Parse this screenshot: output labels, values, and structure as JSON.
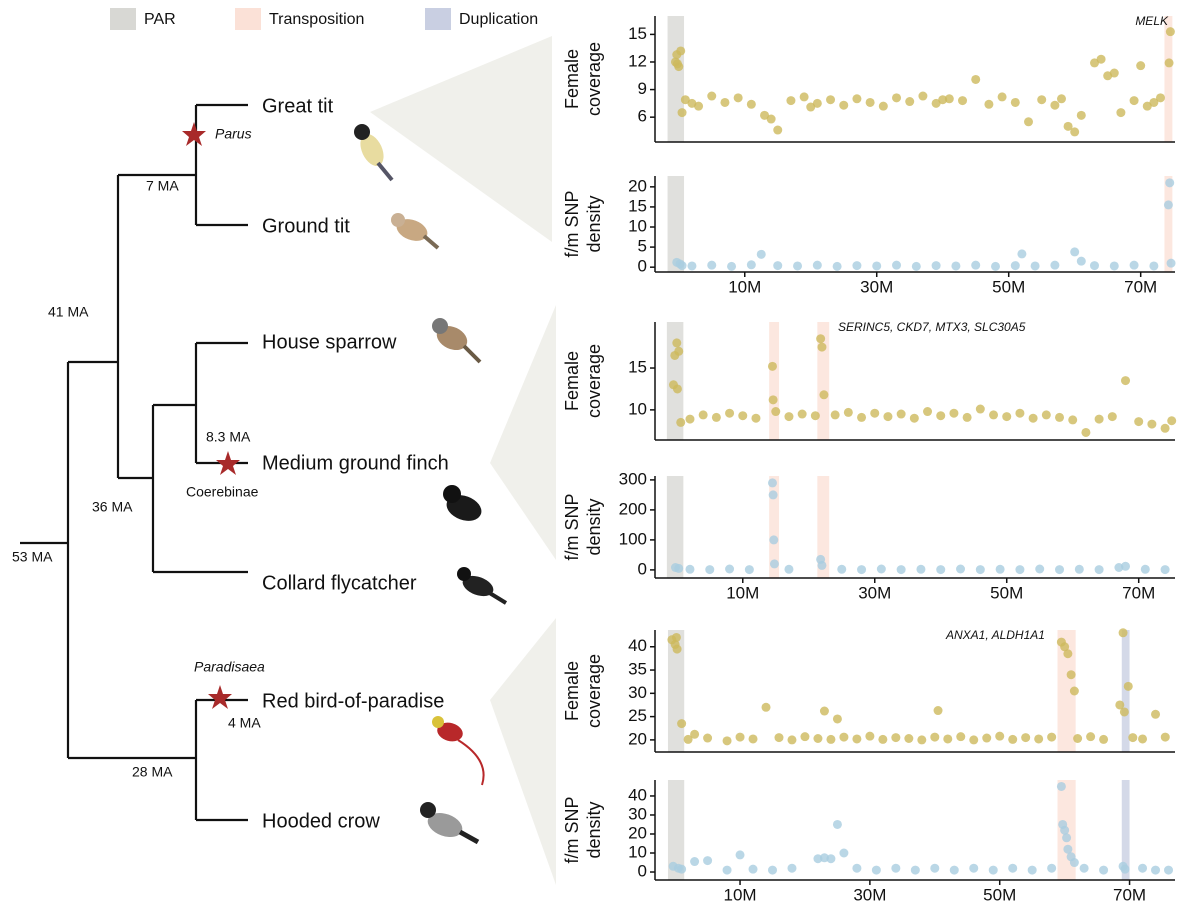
{
  "legend": [
    {
      "name": "PAR",
      "color": "#d8d8d4"
    },
    {
      "name": "Transposition",
      "color": "#fbe1d7"
    },
    {
      "name": "Duplication",
      "color": "#c9cfe2"
    }
  ],
  "tree": {
    "species": [
      "Great tit",
      "Ground tit",
      "House sparrow",
      "Medium ground finch",
      "Collard flycatcher",
      "Red bird-of-paradise",
      "Hooded crow"
    ],
    "ages": [
      "53 MA",
      "41 MA",
      "36 MA",
      "28 MA",
      "7 MA",
      "8.3 MA",
      "4 MA"
    ],
    "clade_labels": [
      "Parus",
      "Coerebinae",
      "Paradisaea"
    ]
  },
  "chart_data": [
    {
      "type": "scatter",
      "ylabel": [
        "Female",
        "coverage"
      ],
      "annotation": "MELK",
      "color": "#cdb95c",
      "xlim": [
        -3.6,
        75.2
      ],
      "ylim": [
        3.3,
        17
      ],
      "yticks": [
        6,
        9,
        12,
        15
      ],
      "regions": [
        {
          "type": "PAR",
          "x": [
            -1.7,
            0.8
          ]
        },
        {
          "type": "Transposition",
          "x": [
            73.6,
            74.8
          ]
        }
      ],
      "x": [
        -0.5,
        -0.3,
        0,
        0.3,
        -0.2,
        0.5,
        1,
        2,
        3,
        5,
        7,
        9,
        11,
        13,
        14,
        15,
        17,
        19,
        20,
        21,
        23,
        25,
        27,
        29,
        31,
        33,
        35,
        37,
        39,
        40,
        41,
        43,
        45,
        47,
        49,
        51,
        53,
        55,
        57,
        58,
        59,
        60,
        61,
        63,
        64,
        65,
        66,
        67,
        69,
        70,
        71,
        72,
        73,
        74.5,
        74.3
      ],
      "values": [
        12,
        12.8,
        11.5,
        13.2,
        11.8,
        6.5,
        7.9,
        7.5,
        7.2,
        8.3,
        7.6,
        8.1,
        7.4,
        6.2,
        5.8,
        4.6,
        7.8,
        8.2,
        7.1,
        7.5,
        7.9,
        7.3,
        8,
        7.6,
        7.2,
        8.1,
        7.7,
        8.3,
        7.5,
        7.9,
        8,
        7.8,
        10.1,
        7.4,
        8.2,
        7.6,
        5.5,
        7.9,
        7.3,
        8,
        5,
        4.4,
        6.2,
        11.9,
        12.3,
        10.5,
        10.8,
        6.5,
        7.8,
        11.6,
        7.2,
        7.6,
        8.1,
        15.3,
        11.9
      ]
    },
    {
      "type": "scatter",
      "ylabel": [
        "f/m SNP",
        "density"
      ],
      "color": "#a9cde0",
      "xlim": [
        -3.6,
        75.2
      ],
      "ylim": [
        -1.2,
        22.7
      ],
      "yticks": [
        0,
        5,
        10,
        15,
        20
      ],
      "xticks": [
        {
          "value": 10,
          "label": "10M"
        },
        {
          "value": 30,
          "label": "30M"
        },
        {
          "value": 50,
          "label": "50M"
        },
        {
          "value": 70,
          "label": "70M"
        }
      ],
      "regions": [
        {
          "type": "PAR",
          "x": [
            -1.7,
            0.8
          ]
        },
        {
          "type": "Transposition",
          "x": [
            73.6,
            74.8
          ]
        }
      ],
      "x": [
        -0.3,
        0.2,
        0.5,
        2,
        5,
        8,
        11,
        12.5,
        15,
        18,
        21,
        24,
        27,
        30,
        33,
        36,
        39,
        42,
        45,
        48,
        51,
        52,
        54,
        57,
        60,
        61,
        63,
        66,
        69,
        72,
        74.4,
        74.2,
        74.6
      ],
      "values": [
        1.2,
        0.8,
        0.4,
        0.3,
        0.5,
        0.2,
        0.6,
        3.2,
        0.4,
        0.3,
        0.5,
        0.2,
        0.4,
        0.3,
        0.5,
        0.2,
        0.4,
        0.3,
        0.5,
        0.2,
        0.4,
        3.3,
        0.3,
        0.5,
        3.8,
        1.5,
        0.4,
        0.3,
        0.5,
        0.3,
        21,
        15.5,
        1
      ]
    },
    {
      "type": "scatter",
      "ylabel": [
        "Female",
        "coverage"
      ],
      "annotation": "SERINC5, CKD7, MTX3, SLC30A5",
      "color": "#cdb95c",
      "xlim": [
        -3.3,
        75.5
      ],
      "ylim": [
        6.4,
        20.5
      ],
      "yticks": [
        10,
        15
      ],
      "regions": [
        {
          "type": "PAR",
          "x": [
            -1.5,
            1
          ]
        },
        {
          "type": "Transposition",
          "x": [
            14,
            15.5
          ]
        },
        {
          "type": "Transposition",
          "x": [
            21.3,
            23.1
          ]
        }
      ],
      "x": [
        -0.5,
        -0.3,
        0,
        0.3,
        0.1,
        0.6,
        2,
        4,
        6,
        8,
        10,
        12,
        14.5,
        14.6,
        15,
        17,
        19,
        21,
        21.8,
        22,
        22.3,
        24,
        26,
        28,
        30,
        32,
        34,
        36,
        38,
        40,
        42,
        44,
        46,
        48,
        50,
        52,
        54,
        56,
        58,
        60,
        62,
        64,
        66,
        68,
        70,
        72,
        74,
        75
      ],
      "values": [
        13,
        16.5,
        18,
        17,
        12.5,
        8.5,
        8.9,
        9.4,
        9.1,
        9.6,
        9.3,
        9,
        15.2,
        11.2,
        9.8,
        9.2,
        9.5,
        9.3,
        18.5,
        17.5,
        11.8,
        9.4,
        9.7,
        9.1,
        9.6,
        9.2,
        9.5,
        9,
        9.8,
        9.3,
        9.6,
        9.1,
        10.1,
        9.4,
        9.2,
        9.6,
        9,
        9.4,
        9.1,
        8.8,
        7.3,
        8.9,
        9.2,
        13.5,
        8.6,
        8.3,
        7.8,
        8.7
      ]
    },
    {
      "type": "scatter",
      "ylabel": [
        "f/m SNP",
        "density"
      ],
      "color": "#a9cde0",
      "xlim": [
        -3.3,
        75.5
      ],
      "ylim": [
        -27,
        313
      ],
      "yticks": [
        0,
        100,
        200,
        300
      ],
      "xticks": [
        {
          "value": 10,
          "label": "10M"
        },
        {
          "value": 30,
          "label": "30M"
        },
        {
          "value": 50,
          "label": "50M"
        },
        {
          "value": 70,
          "label": "70M"
        }
      ],
      "regions": [
        {
          "type": "PAR",
          "x": [
            -1.5,
            1
          ]
        },
        {
          "type": "Transposition",
          "x": [
            14,
            15.5
          ]
        },
        {
          "type": "Transposition",
          "x": [
            21.3,
            23.1
          ]
        }
      ],
      "x": [
        -0.2,
        0.3,
        2,
        5,
        8,
        11,
        14.5,
        14.6,
        14.7,
        14.8,
        17,
        21.8,
        22,
        25,
        28,
        31,
        34,
        37,
        40,
        43,
        46,
        49,
        52,
        55,
        58,
        61,
        64,
        67,
        68,
        71,
        74
      ],
      "values": [
        8,
        5,
        2,
        1,
        3,
        1,
        290,
        250,
        100,
        20,
        2,
        35,
        15,
        2,
        1,
        3,
        1,
        2,
        1,
        3,
        1,
        2,
        1,
        3,
        1,
        2,
        1,
        8,
        12,
        2,
        1
      ]
    },
    {
      "type": "scatter",
      "ylabel": [
        "Female",
        "coverage"
      ],
      "annotation": "ANXA1, ALDH1A1",
      "color": "#cdb95c",
      "xlim": [
        -3.1,
        77
      ],
      "ylim": [
        17.4,
        43.6
      ],
      "yticks": [
        20,
        25,
        30,
        35,
        40
      ],
      "regions": [
        {
          "type": "PAR",
          "x": [
            -1.1,
            1.4
          ]
        },
        {
          "type": "Transposition",
          "x": [
            58.9,
            61.7
          ]
        },
        {
          "type": "Duplication",
          "x": [
            68.8,
            70
          ]
        }
      ],
      "x": [
        -0.5,
        0,
        0.3,
        0.2,
        1,
        2,
        3,
        5,
        8,
        10,
        12,
        14,
        16,
        18,
        20,
        22,
        23,
        24,
        25,
        26,
        28,
        30,
        32,
        34,
        36,
        38,
        40,
        40.5,
        42,
        44,
        46,
        48,
        50,
        52,
        54,
        56,
        58,
        59.5,
        60,
        60.5,
        61,
        61.5,
        62,
        64,
        66,
        68.5,
        69,
        69.2,
        69.8,
        70.5,
        72,
        74,
        75.5
      ],
      "values": [
        41.5,
        40.5,
        39.5,
        42,
        23.5,
        20.1,
        21.2,
        20.4,
        19.8,
        20.6,
        20.2,
        27,
        20.5,
        20,
        20.7,
        20.3,
        26.2,
        20.1,
        24.5,
        20.6,
        20.2,
        20.8,
        20.1,
        20.5,
        20.3,
        20,
        20.6,
        26.3,
        20.2,
        20.7,
        20,
        20.4,
        20.8,
        20.1,
        20.5,
        20.2,
        20.6,
        41,
        40,
        38.5,
        34,
        30.5,
        20.3,
        20.7,
        20.1,
        27.5,
        43,
        26,
        31.5,
        20.5,
        20.2,
        25.5,
        20.6
      ]
    },
    {
      "type": "scatter",
      "ylabel": [
        "f/m SNP",
        "density"
      ],
      "color": "#a9cde0",
      "xlim": [
        -3.1,
        77
      ],
      "ylim": [
        -4.2,
        48.4
      ],
      "yticks": [
        0,
        10,
        20,
        30,
        40
      ],
      "xticks": [
        {
          "value": 10,
          "label": "10M"
        },
        {
          "value": 30,
          "label": "30M"
        },
        {
          "value": 50,
          "label": "50M"
        },
        {
          "value": 70,
          "label": "70M"
        }
      ],
      "regions": [
        {
          "type": "PAR",
          "x": [
            -1.1,
            1.4
          ]
        },
        {
          "type": "Transposition",
          "x": [
            58.9,
            61.7
          ]
        },
        {
          "type": "Duplication",
          "x": [
            68.8,
            70
          ]
        }
      ],
      "x": [
        -0.3,
        0.5,
        1,
        3,
        5,
        8,
        10,
        12,
        15,
        18,
        22,
        23,
        24,
        25,
        26,
        28,
        31,
        34,
        37,
        40,
        43,
        46,
        49,
        52,
        55,
        58,
        59.5,
        59.7,
        60,
        60.3,
        60.5,
        61,
        61.5,
        63,
        66,
        69,
        69.3,
        72,
        74,
        76
      ],
      "values": [
        3,
        2,
        1.5,
        5.5,
        6,
        1,
        9,
        1.5,
        1,
        2,
        7,
        7.5,
        7,
        25,
        10,
        2,
        1,
        2,
        1,
        2,
        1,
        2,
        1,
        2,
        1,
        2,
        45,
        25,
        22,
        18,
        12,
        8,
        5,
        2,
        1,
        3,
        1.5,
        2,
        1,
        1
      ]
    }
  ]
}
